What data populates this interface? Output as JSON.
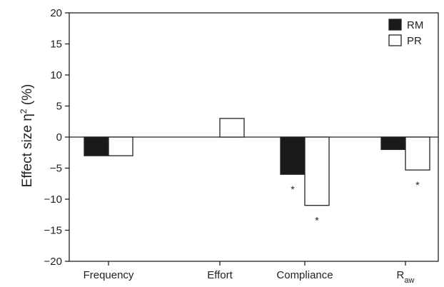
{
  "chart_data": {
    "type": "bar",
    "categories": [
      "Frequency",
      "Effort",
      "Compliance",
      "R"
    ],
    "category_subscripts": [
      "",
      "",
      "",
      "aw"
    ],
    "series": [
      {
        "name": "RM",
        "color": "#1a1a1a",
        "values": [
          -3,
          null,
          -6,
          -2
        ],
        "significant": [
          false,
          false,
          true,
          false
        ]
      },
      {
        "name": "PR",
        "color": "#ffffff",
        "values": [
          -3,
          3,
          -11,
          -5.3
        ],
        "significant": [
          false,
          false,
          true,
          true
        ]
      }
    ],
    "ylabel": "Effect size η",
    "ylabel_superscript": "2",
    "ylabel_suffix": " (%)",
    "ylim": [
      -20,
      20
    ],
    "yticks": [
      -20,
      -15,
      -10,
      -5,
      0,
      5,
      10,
      15,
      20
    ],
    "significance_marker": "*",
    "legend_position": "top-right"
  }
}
